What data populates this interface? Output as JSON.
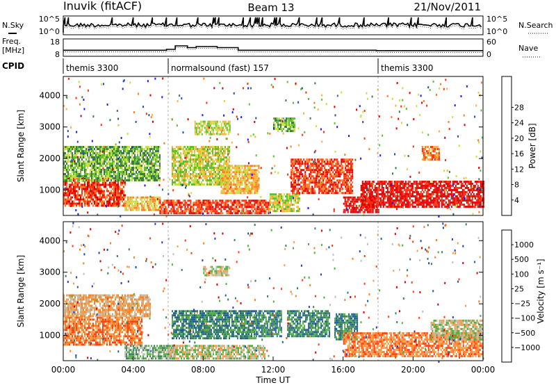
{
  "header": {
    "station": "Inuvik (fitACF)",
    "beam": "Beam 13",
    "date": "21/Nov/2011"
  },
  "summary_panels": {
    "nsky_label": "N.Sky",
    "nsky_ticks": [
      "10^5",
      "10^0"
    ],
    "nsearch_label": "N.Search",
    "nsearch_ticks": [
      "10^5",
      "10^0"
    ],
    "freq_label_line1": "Freq.",
    "freq_label_line2": "[MHz]",
    "freq_ticks": [
      "18",
      "8"
    ],
    "nave_label": "Nave",
    "nave_ticks": [
      "60",
      "0"
    ],
    "cpid_label": "CPID"
  },
  "cpid_segments": [
    {
      "name": "themis 3300",
      "start_hour": 0,
      "end_hour": 6
    },
    {
      "name": "normalsound (fast) 157",
      "start_hour": 6,
      "end_hour": 18
    },
    {
      "name": "themis 3300",
      "start_hour": 18,
      "end_hour": 24
    }
  ],
  "panels": {
    "power": {
      "ylabel": "Slant Range [km]",
      "yticks": [
        "1000",
        "2000",
        "3000",
        "4000"
      ],
      "cbar_label": "Power [dB]",
      "cbar_ticks": [
        "4",
        "8",
        "12",
        "16",
        "20",
        "24",
        "28"
      ],
      "cbar_colors": [
        "#1a1aff",
        "#2050b0",
        "#3a7a50",
        "#5fc030",
        "#c8e040",
        "#ffb040",
        "#ff7a20",
        "#ff3010",
        "#e00000"
      ]
    },
    "velocity": {
      "ylabel": "Slant Range [km]",
      "yticks": [
        "1000",
        "2000",
        "3000",
        "4000"
      ],
      "cbar_label": "Velocity [m s⁻¹]",
      "cbar_ticks": [
        "1000",
        "500",
        "100",
        "25",
        "−25",
        "−100",
        "−500",
        "−1000"
      ],
      "cbar_colors": [
        "#2040c0",
        "#2060a0",
        "#3a8060",
        "#50b040",
        "#c0c0b0",
        "#f0a050",
        "#ff8020",
        "#ff4010",
        "#e00000"
      ]
    }
  },
  "x_axis": {
    "label": "Time UT",
    "ticks": [
      "00:00",
      "04:00",
      "08:00",
      "12:00",
      "16:00",
      "20:00",
      "00:00"
    ]
  },
  "chart_data": {
    "type": "heatmap",
    "title": "Inuvik (fitACF)",
    "x_units": "hours UT",
    "xlim": [
      0,
      24
    ],
    "ylim": [
      200,
      4600
    ],
    "ylabel": "Slant Range [km]",
    "xlabel": "Time UT",
    "freq_mhz": [
      {
        "start_hour": 0,
        "end_hour": 5.9,
        "value": 11.5
      },
      {
        "start_hour": 5.9,
        "end_hour": 6.4,
        "value": 12.0
      },
      {
        "start_hour": 6.4,
        "end_hour": 7.1,
        "value": 14.0
      },
      {
        "start_hour": 7.1,
        "end_hour": 7.6,
        "value": 13.0
      },
      {
        "start_hour": 7.6,
        "end_hour": 8.8,
        "value": 13.6
      },
      {
        "start_hour": 8.8,
        "end_hour": 10.0,
        "value": 13.0
      },
      {
        "start_hour": 10.0,
        "end_hour": 17.9,
        "value": 11.5
      },
      {
        "start_hour": 17.9,
        "end_hour": 24.0,
        "value": 11.3
      }
    ],
    "power_regions": [
      {
        "t0": 0.0,
        "t1": 3.5,
        "r0": 500,
        "r1": 1400,
        "level": 7
      },
      {
        "t0": 0.0,
        "t1": 5.5,
        "r0": 1300,
        "r1": 2400,
        "level": 3
      },
      {
        "t0": 3.5,
        "t1": 5.5,
        "r0": 350,
        "r1": 800,
        "level": 5
      },
      {
        "t0": 5.5,
        "t1": 11.8,
        "r0": 250,
        "r1": 700,
        "level": 7
      },
      {
        "t0": 6.2,
        "t1": 9.5,
        "r0": 1200,
        "r1": 2400,
        "level": 4
      },
      {
        "t0": 7.5,
        "t1": 9.5,
        "r0": 2800,
        "r1": 3200,
        "level": 4
      },
      {
        "t0": 9.0,
        "t1": 11.2,
        "r0": 900,
        "r1": 1800,
        "level": 5
      },
      {
        "t0": 11.8,
        "t1": 13.5,
        "r0": 350,
        "r1": 900,
        "level": 4
      },
      {
        "t0": 12.0,
        "t1": 13.2,
        "r0": 2900,
        "r1": 3300,
        "level": 3
      },
      {
        "t0": 13.0,
        "t1": 16.5,
        "r0": 900,
        "r1": 2000,
        "level": 7
      },
      {
        "t0": 16.0,
        "t1": 18.0,
        "r0": 300,
        "r1": 800,
        "level": 8
      },
      {
        "t0": 17.0,
        "t1": 24.0,
        "r0": 500,
        "r1": 1300,
        "level": 8
      },
      {
        "t0": 20.5,
        "t1": 21.5,
        "r0": 2000,
        "r1": 2400,
        "level": 6
      }
    ],
    "velocity_regions": [
      {
        "t0": 0.0,
        "t1": 4.5,
        "r0": 700,
        "r1": 1600,
        "level": 6
      },
      {
        "t0": 0.0,
        "t1": 5.0,
        "r0": 1600,
        "r1": 2300,
        "level": 5
      },
      {
        "t0": 3.5,
        "t1": 6.5,
        "r0": 300,
        "r1": 700,
        "level": 3
      },
      {
        "t0": 6.0,
        "t1": 11.5,
        "r0": 250,
        "r1": 700,
        "level": 4
      },
      {
        "t0": 6.2,
        "t1": 11.0,
        "r0": 900,
        "r1": 1800,
        "level": 2
      },
      {
        "t0": 8.0,
        "t1": 9.5,
        "r0": 2900,
        "r1": 3200,
        "level": 4
      },
      {
        "t0": 11.0,
        "t1": 12.5,
        "r0": 1000,
        "r1": 1800,
        "level": 2
      },
      {
        "t0": 12.8,
        "t1": 15.2,
        "r0": 1000,
        "r1": 1800,
        "level": 2
      },
      {
        "t0": 15.5,
        "t1": 16.8,
        "r0": 900,
        "r1": 1700,
        "level": 2
      },
      {
        "t0": 16.0,
        "t1": 24.0,
        "r0": 350,
        "r1": 1100,
        "level": 6
      },
      {
        "t0": 21.0,
        "t1": 24.0,
        "r0": 900,
        "r1": 1500,
        "level": 4
      }
    ]
  }
}
